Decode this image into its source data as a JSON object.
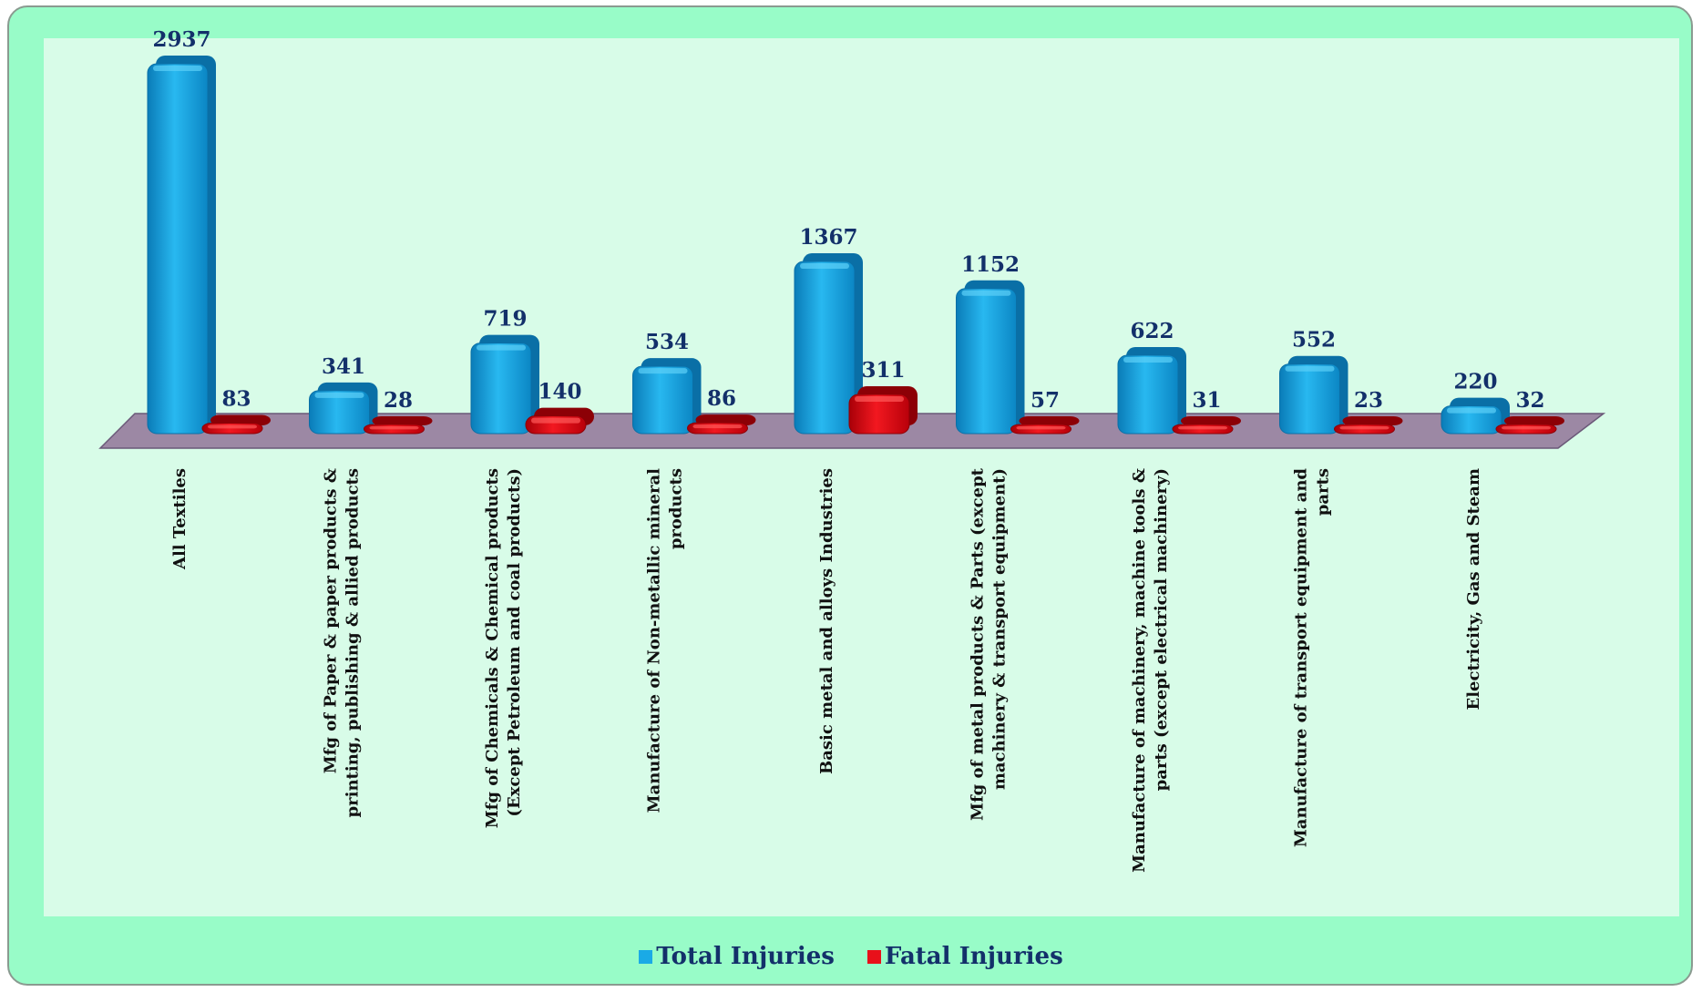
{
  "chart_data": {
    "type": "bar",
    "categories": [
      "All Textiles",
      "Mfg of Paper & paper products & printing, publishing & allied products",
      "Mfg of Chemicals & Chemical products (Except Petroleum and coal products)",
      "Manufacture of Non-metallic mineral products",
      "Basic metal and alloys Industries",
      "Mfg of metal products & Parts (except machinery & transport equipment)",
      "Manufacture of machinery, machine tools & parts (except electrical machinery)",
      "Manufacture of transport equipment and parts",
      "Electricity, Gas and Steam"
    ],
    "category_lines": [
      [
        "All Textiles"
      ],
      [
        "Mfg of Paper & paper products &",
        "printing, publishing & allied products"
      ],
      [
        "Mfg of Chemicals & Chemical products",
        "(Except Petroleum and coal products)"
      ],
      [
        "Manufacture of Non-metallic mineral",
        "products"
      ],
      [
        "Basic metal and alloys Industries"
      ],
      [
        "Mfg of metal products & Parts (except",
        "machinery & transport equipment)"
      ],
      [
        "Manufacture of machinery, machine tools &",
        "parts (except electrical machinery)"
      ],
      [
        "Manufacture of transport equipment and",
        "parts"
      ],
      [
        "Electricity, Gas and Steam"
      ]
    ],
    "series": [
      {
        "name": "Total Injuries",
        "color": "#1aaae6",
        "values": [
          2937,
          341,
          719,
          534,
          1367,
          1152,
          622,
          552,
          220
        ]
      },
      {
        "name": "Fatal Injuries",
        "color": "#e8101a",
        "values": [
          83,
          28,
          140,
          86,
          311,
          57,
          31,
          23,
          32
        ]
      }
    ],
    "data_labels": true,
    "legend": "bottom",
    "grid": false,
    "ylim": [
      0,
      2937
    ]
  }
}
